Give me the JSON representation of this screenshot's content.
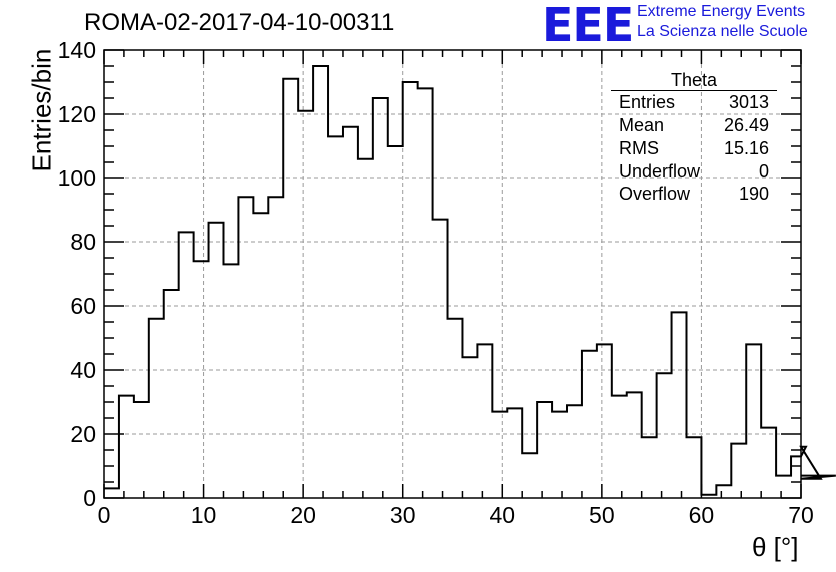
{
  "header": {
    "title": "ROMA-02-2017-04-10-00311",
    "logo_text": "EEE",
    "logo_line1": "Extreme Energy Events",
    "logo_line2": "La Scienza nelle Scuole",
    "brand_color": "#1a1adb"
  },
  "stats": {
    "title": "Theta",
    "rows": [
      {
        "label": "Entries",
        "value": "3013"
      },
      {
        "label": "Mean",
        "value": "26.49"
      },
      {
        "label": "RMS",
        "value": "15.16"
      },
      {
        "label": "Underflow",
        "value": "0"
      },
      {
        "label": "Overflow",
        "value": "190"
      }
    ]
  },
  "chart_data": {
    "type": "bar",
    "style": "step-histogram",
    "title": "ROMA-02-2017-04-10-00311",
    "xlabel": "θ [°]",
    "ylabel": "Entries/bin",
    "xlim": [
      0,
      70
    ],
    "ylim": [
      0,
      140
    ],
    "xticks": [
      0,
      10,
      20,
      30,
      40,
      50,
      60,
      70
    ],
    "yticks": [
      0,
      20,
      40,
      60,
      80,
      100,
      120,
      140
    ],
    "grid": true,
    "bin_width": 1.5,
    "bin_edges_start": 0,
    "values": [
      3,
      32,
      30,
      56,
      65,
      83,
      74,
      86,
      73,
      94,
      89,
      94,
      131,
      121,
      135,
      113,
      116,
      106,
      125,
      110,
      130,
      128,
      87,
      56,
      44,
      48,
      27,
      28,
      14,
      30,
      27,
      29,
      46,
      48,
      32,
      33,
      19,
      39,
      58,
      19,
      1,
      4,
      17,
      48,
      22,
      7,
      13,
      16,
      6,
      7
    ]
  }
}
